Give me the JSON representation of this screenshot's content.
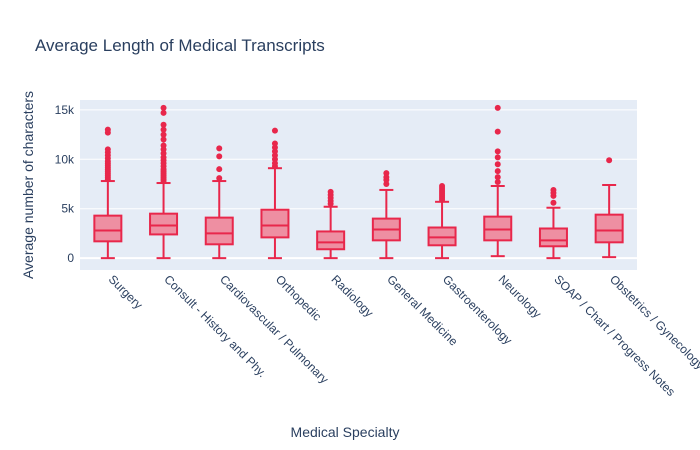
{
  "chart_data": {
    "type": "box",
    "title": "Average Length of Medical Transcripts",
    "xlabel": "Medical Specialty",
    "ylabel": "Average number of characters",
    "ylim": [
      -1200,
      16000
    ],
    "yticks": [
      0,
      5000,
      10000,
      15000
    ],
    "ytick_labels": [
      "0",
      "5k",
      "10k",
      "15k"
    ],
    "grid": true,
    "colors": {
      "box_line": "#e8274b",
      "box_fill": "#ee8fa2",
      "plot_bg": "#e5ecf6",
      "grid": "#ffffff",
      "text": "#2a3f5f"
    },
    "categories": [
      "Surgery",
      "Consult - History and Phy.",
      "Cardiovascular / Pulmonary",
      "Orthopedic",
      "Radiology",
      "General Medicine",
      "Gastroenterology",
      "Neurology",
      "SOAP / Chart / Progress Notes",
      "Obstetrics / Gynecology"
    ],
    "boxes": [
      {
        "min": 0,
        "q1": 1700,
        "median": 2800,
        "q3": 4300,
        "max": 7800,
        "outliers": [
          8000,
          8200,
          8400,
          8600,
          8800,
          9000,
          9200,
          9400,
          9600,
          9800,
          10100,
          10400,
          10700,
          11000,
          12700,
          13000
        ]
      },
      {
        "min": 0,
        "q1": 2400,
        "median": 3300,
        "q3": 4500,
        "max": 7600,
        "outliers": [
          7800,
          8000,
          8200,
          8400,
          8600,
          8800,
          9000,
          9300,
          9600,
          9900,
          10200,
          10600,
          11000,
          11400,
          12000,
          12500,
          13000,
          13500,
          14700,
          15200
        ]
      },
      {
        "min": 0,
        "q1": 1400,
        "median": 2500,
        "q3": 4100,
        "max": 7800,
        "outliers": [
          8100,
          9000,
          10300,
          11100
        ]
      },
      {
        "min": 0,
        "q1": 2100,
        "median": 3300,
        "q3": 4900,
        "max": 9100,
        "outliers": [
          9300,
          9600,
          10000,
          10400,
          10800,
          11200,
          11600,
          12900
        ]
      },
      {
        "min": 0,
        "q1": 900,
        "median": 1600,
        "q3": 2700,
        "max": 5200,
        "outliers": [
          5500,
          5800,
          6100,
          6400,
          6700
        ]
      },
      {
        "min": 0,
        "q1": 1800,
        "median": 2900,
        "q3": 4000,
        "max": 6900,
        "outliers": [
          7500,
          7900,
          8200,
          8600
        ]
      },
      {
        "min": 0,
        "q1": 1300,
        "median": 2100,
        "q3": 3100,
        "max": 5700,
        "outliers": [
          5900,
          6100,
          6300,
          6500,
          6700,
          6900,
          7100,
          7300
        ]
      },
      {
        "min": 200,
        "q1": 1800,
        "median": 2900,
        "q3": 4200,
        "max": 7300,
        "outliers": [
          7700,
          8200,
          8800,
          9500,
          10200,
          10800,
          12800,
          15200
        ]
      },
      {
        "min": 0,
        "q1": 1200,
        "median": 1800,
        "q3": 3000,
        "max": 5100,
        "outliers": [
          5600,
          6300,
          6600,
          6900
        ]
      },
      {
        "min": 100,
        "q1": 1600,
        "median": 2800,
        "q3": 4400,
        "max": 7400,
        "outliers": [
          9900
        ]
      }
    ]
  }
}
